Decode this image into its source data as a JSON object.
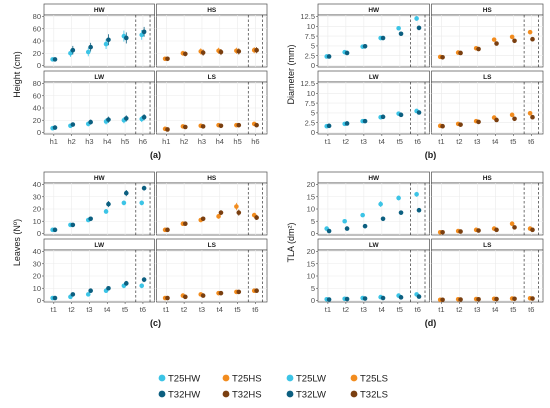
{
  "colors": {
    "T25HW": "#3cc4e6",
    "T25HS": "#f28c1e",
    "T25LW": "#3cc4e6",
    "T25LS": "#f28c1e",
    "T32HW": "#0c5f80",
    "T32HS": "#7a3f10",
    "T32LW": "#0c5f80",
    "T32LS": "#7a3f10"
  },
  "legend": {
    "row1": [
      "T25HW",
      "T25HS",
      "T25LW",
      "T25LS"
    ],
    "row2": [
      "T32HW",
      "T32HS",
      "T32LW",
      "T32LS"
    ]
  },
  "chart_data": [
    {
      "type": "scatter",
      "label": "(a)",
      "ylabel": "Height (cm)",
      "ylim": [
        0,
        80
      ],
      "yticks": [
        0,
        20,
        40,
        60,
        80
      ],
      "xticks_left": [
        "h1",
        "h2",
        "h3",
        "h4",
        "h5",
        "h6"
      ],
      "xticks_right": [
        "h1",
        "h2",
        "h3",
        "h4",
        "h5",
        "h6"
      ],
      "panels": {
        "HW": {
          "series": [
            {
              "name": "T25HW",
              "values": [
                10,
                20,
                22,
                35,
                48,
                50
              ],
              "err": [
                3,
                6,
                7,
                8,
                9,
                8
              ]
            },
            {
              "name": "T32HW",
              "values": [
                10,
                25,
                30,
                42,
                45,
                55
              ],
              "err": [
                3,
                7,
                7,
                9,
                9,
                8
              ]
            }
          ]
        },
        "HS": {
          "series": [
            {
              "name": "T25HS",
              "values": [
                11,
                20,
                23,
                24,
                24,
                25
              ],
              "err": [
                3,
                4,
                5,
                5,
                5,
                5
              ]
            },
            {
              "name": "T32HS",
              "values": [
                11,
                19,
                21,
                22,
                23,
                25
              ],
              "err": [
                3,
                4,
                5,
                5,
                5,
                5
              ]
            }
          ]
        },
        "LW": {
          "series": [
            {
              "name": "T25LW",
              "values": [
                7,
                11,
                14,
                18,
                20,
                22
              ],
              "err": [
                2,
                3,
                4,
                5,
                5,
                5
              ]
            },
            {
              "name": "T32LW",
              "values": [
                8,
                13,
                17,
                21,
                23,
                25
              ],
              "err": [
                2,
                3,
                4,
                5,
                5,
                5
              ]
            }
          ]
        },
        "LS": {
          "series": [
            {
              "name": "T25LS",
              "values": [
                6,
                10,
                11,
                12,
                12,
                14
              ],
              "err": [
                2,
                3,
                3,
                3,
                3,
                3
              ]
            },
            {
              "name": "T32LS",
              "values": [
                5,
                9,
                10,
                11,
                12,
                12
              ],
              "err": [
                2,
                3,
                3,
                3,
                3,
                3
              ]
            }
          ]
        }
      }
    },
    {
      "type": "scatter",
      "label": "(b)",
      "ylabel": "Diameter (mm)",
      "ylim": [
        0,
        12.5
      ],
      "yticks": [
        0,
        2.5,
        5.0,
        7.5,
        10.0,
        12.5
      ],
      "xticks_left": [
        "t1",
        "t2",
        "t3",
        "t4",
        "t5",
        "t6"
      ],
      "xticks_right": [
        "t1",
        "t2",
        "t3",
        "t4",
        "t5",
        "t6"
      ],
      "panels": {
        "HW": {
          "series": [
            {
              "name": "T25HW",
              "values": [
                2.3,
                3.4,
                4.8,
                7.0,
                9.5,
                12.0
              ],
              "err": [
                0.2,
                0.3,
                0.3,
                0.4,
                0.4,
                0.6
              ]
            },
            {
              "name": "T32HW",
              "values": [
                2.3,
                3.2,
                4.9,
                7.0,
                8.1,
                9.6
              ],
              "err": [
                0.2,
                0.3,
                0.3,
                0.4,
                0.4,
                0.6
              ]
            }
          ]
        },
        "HS": {
          "series": [
            {
              "name": "T25HS",
              "values": [
                2.2,
                3.3,
                4.4,
                6.6,
                7.3,
                8.5
              ],
              "err": [
                0.2,
                0.3,
                0.3,
                0.4,
                0.4,
                0.5
              ]
            },
            {
              "name": "T32HS",
              "values": [
                2.1,
                3.2,
                4.2,
                5.6,
                6.3,
                6.7
              ],
              "err": [
                0.2,
                0.3,
                0.3,
                0.4,
                0.4,
                0.5
              ]
            }
          ]
        },
        "LW": {
          "series": [
            {
              "name": "T25LW",
              "values": [
                1.6,
                2.2,
                2.9,
                3.9,
                4.8,
                5.5
              ],
              "err": [
                0.2,
                0.2,
                0.3,
                0.3,
                0.3,
                0.5
              ]
            },
            {
              "name": "T32LW",
              "values": [
                1.7,
                2.3,
                2.9,
                4.0,
                4.5,
                5.1
              ],
              "err": [
                0.2,
                0.2,
                0.3,
                0.3,
                0.3,
                0.5
              ]
            }
          ]
        },
        "LS": {
          "series": [
            {
              "name": "T25LS",
              "values": [
                1.7,
                2.2,
                2.9,
                3.8,
                4.5,
                4.9
              ],
              "err": [
                0.2,
                0.2,
                0.3,
                0.3,
                0.3,
                0.4
              ]
            },
            {
              "name": "T32LS",
              "values": [
                1.6,
                2.0,
                2.7,
                3.2,
                3.5,
                3.9
              ],
              "err": [
                0.2,
                0.2,
                0.3,
                0.3,
                0.3,
                0.4
              ]
            }
          ]
        }
      }
    },
    {
      "type": "scatter",
      "label": "(c)",
      "ylabel": "Leaves (Nº)",
      "ylim": [
        0,
        40
      ],
      "yticks": [
        0,
        10,
        20,
        30,
        40
      ],
      "xticks_left": [
        "t1",
        "t2",
        "t3",
        "t4",
        "t5",
        "t6"
      ],
      "xticks_right": [
        "t1",
        "t2",
        "t3",
        "t4",
        "t5",
        "t6"
      ],
      "panels": {
        "HW": {
          "series": [
            {
              "name": "T25HW",
              "values": [
                3,
                7,
                11,
                18,
                25,
                25
              ],
              "err": [
                0.5,
                1,
                1.5,
                2,
                2,
                2
              ]
            },
            {
              "name": "T32HW",
              "values": [
                3,
                7,
                12,
                24,
                33,
                37
              ],
              "err": [
                0.5,
                1,
                1.5,
                2.5,
                2.5,
                2
              ]
            }
          ]
        },
        "HS": {
          "series": [
            {
              "name": "T25HS",
              "values": [
                3,
                8,
                11,
                14,
                22,
                15
              ],
              "err": [
                0.5,
                1,
                1.5,
                2,
                3,
                2
              ]
            },
            {
              "name": "T32HS",
              "values": [
                3,
                8,
                12,
                17,
                17,
                13
              ],
              "err": [
                0.5,
                1,
                1.5,
                2,
                2.5,
                2
              ]
            }
          ]
        },
        "LW": {
          "series": [
            {
              "name": "T25LW",
              "values": [
                2,
                3,
                5,
                8,
                12,
                12
              ],
              "err": [
                0.5,
                1,
                1,
                1.5,
                2,
                2
              ]
            },
            {
              "name": "T32LW",
              "values": [
                2,
                5,
                8,
                10,
                14,
                17
              ],
              "err": [
                0.5,
                1,
                1,
                1.5,
                2,
                2
              ]
            }
          ]
        },
        "LS": {
          "series": [
            {
              "name": "T25LS",
              "values": [
                2,
                4,
                5,
                6,
                7,
                8
              ],
              "err": [
                0.5,
                1,
                1,
                1,
                1,
                1
              ]
            },
            {
              "name": "T32LS",
              "values": [
                2,
                3,
                4,
                6,
                7,
                8
              ],
              "err": [
                0.5,
                1,
                1,
                1,
                1,
                1
              ]
            }
          ]
        }
      }
    },
    {
      "type": "scatter",
      "label": "(d)",
      "ylabel": "TLA (dm²)",
      "ylim": [
        0,
        20
      ],
      "yticks": [
        0,
        5,
        10,
        15,
        20
      ],
      "xticks_left": [
        "t1",
        "t2",
        "t3",
        "t4",
        "t5",
        "t6"
      ],
      "xticks_right": [
        "t1",
        "t2",
        "t3",
        "t4",
        "t5",
        "t6"
      ],
      "panels": {
        "HW": {
          "series": [
            {
              "name": "T25HW",
              "values": [
                2.0,
                5.0,
                7.5,
                12.0,
                14.5,
                16.0
              ],
              "err": [
                0.4,
                0.6,
                0.8,
                1.2,
                1.0,
                1.0
              ]
            },
            {
              "name": "T32HW",
              "values": [
                1.0,
                2.0,
                3.0,
                6.0,
                8.5,
                9.5
              ],
              "err": [
                0.3,
                0.4,
                0.5,
                0.8,
                0.8,
                0.8
              ]
            }
          ]
        },
        "HS": {
          "series": [
            {
              "name": "T25HS",
              "values": [
                0.5,
                1.0,
                1.5,
                2.0,
                4.0,
                2.0
              ],
              "err": [
                0.2,
                0.3,
                0.4,
                0.5,
                0.8,
                0.5
              ]
            },
            {
              "name": "T32HS",
              "values": [
                0.5,
                0.8,
                1.2,
                1.5,
                2.5,
                1.5
              ],
              "err": [
                0.2,
                0.3,
                0.4,
                0.5,
                0.6,
                0.5
              ]
            }
          ]
        },
        "LW": {
          "series": [
            {
              "name": "T25LW",
              "values": [
                0.5,
                0.7,
                1.0,
                1.4,
                2.0,
                2.5
              ],
              "err": [
                0.2,
                0.3,
                0.3,
                0.4,
                0.5,
                0.6
              ]
            },
            {
              "name": "T32LW",
              "values": [
                0.4,
                0.6,
                0.8,
                1.0,
                1.3,
                1.6
              ],
              "err": [
                0.2,
                0.3,
                0.3,
                0.3,
                0.4,
                0.5
              ]
            }
          ]
        },
        "LS": {
          "series": [
            {
              "name": "T25LS",
              "values": [
                0.3,
                0.5,
                0.6,
                0.7,
                0.8,
                0.9
              ],
              "err": [
                0.1,
                0.1,
                0.2,
                0.2,
                0.2,
                0.3
              ]
            },
            {
              "name": "T32LS",
              "values": [
                0.3,
                0.4,
                0.5,
                0.6,
                0.7,
                0.8
              ],
              "err": [
                0.1,
                0.1,
                0.2,
                0.2,
                0.2,
                0.3
              ]
            }
          ]
        }
      }
    }
  ]
}
